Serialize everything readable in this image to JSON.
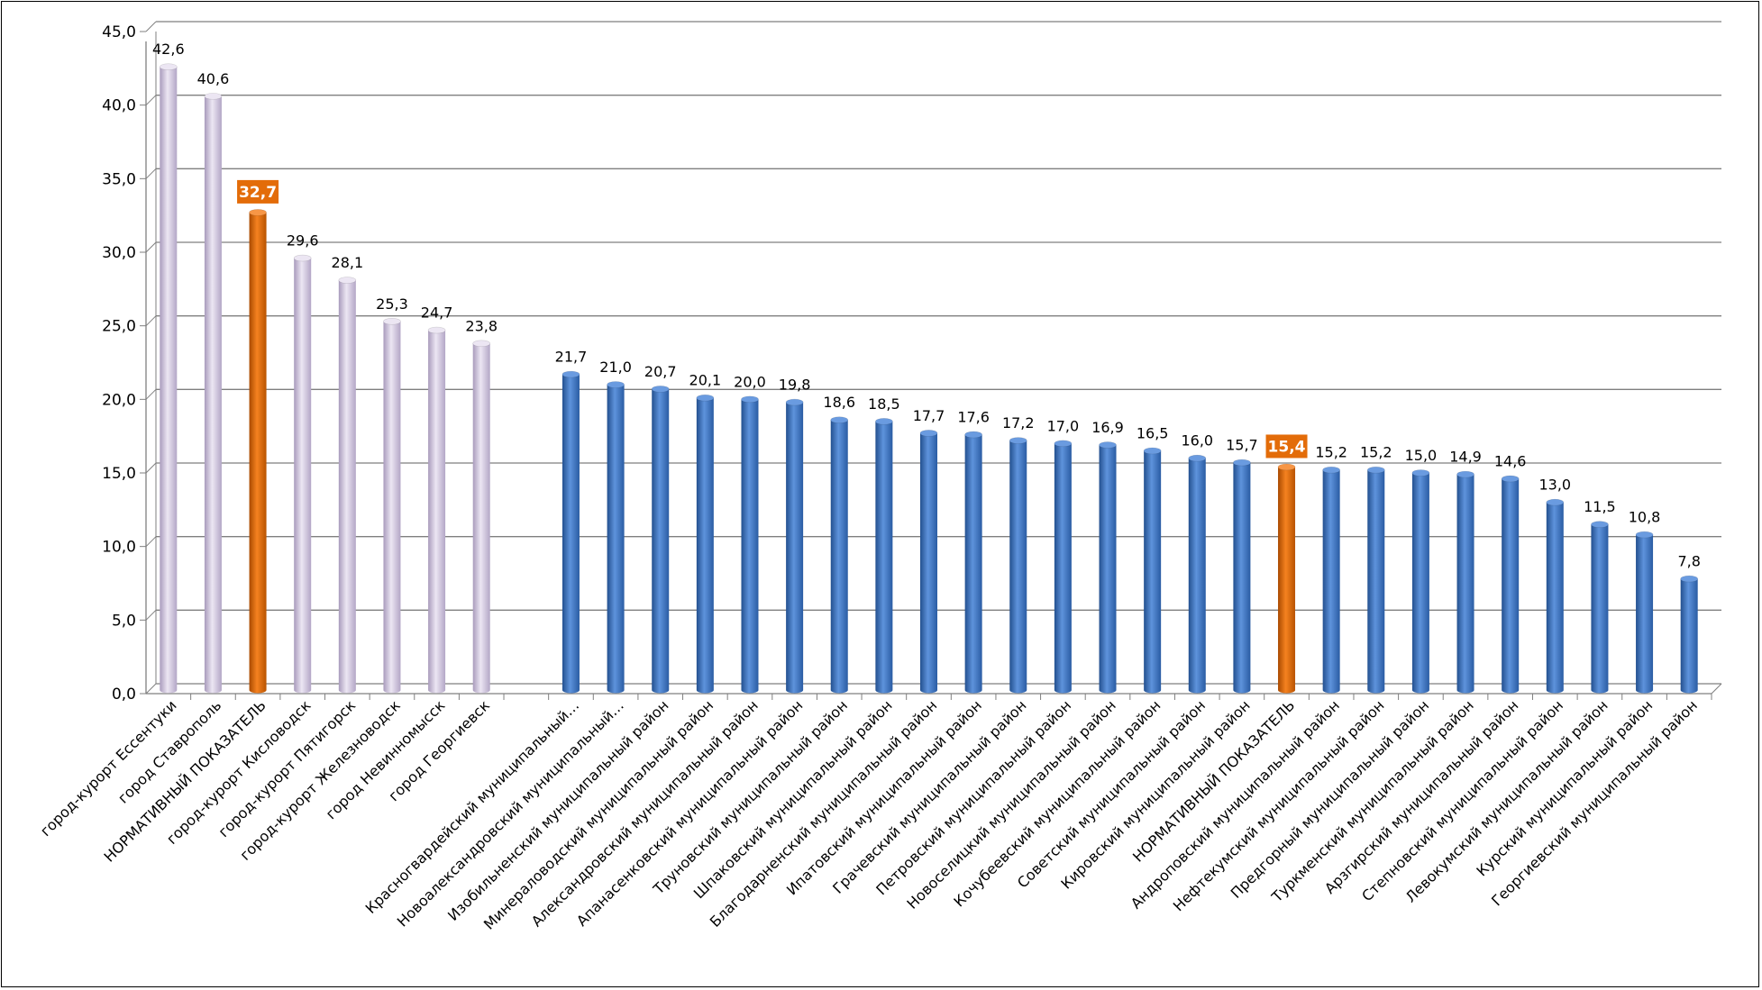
{
  "chart_data": {
    "type": "bar",
    "title": "",
    "xlabel": "",
    "ylabel": "",
    "ylim": [
      0,
      45
    ],
    "ytick_labels": [
      "0,0",
      "5,0",
      "10,0",
      "15,0",
      "20,0",
      "25,0",
      "30,0",
      "35,0",
      "40,0",
      "45,0"
    ],
    "grid": true,
    "legend": "none",
    "colors": {
      "city": "#d2c7df",
      "district": "#3f76c5",
      "norm": "#e36c09",
      "grid": "#7f7f7f"
    },
    "groups": [
      {
        "name": "",
        "bars": [
          {
            "label": "город-курорт  Ессентуки",
            "value": 42.6,
            "value_label": "42,6",
            "kind": "city"
          },
          {
            "label": "город Ставрополь",
            "value": 40.6,
            "value_label": "40,6",
            "kind": "city"
          },
          {
            "label": "НОРМАТИВНЫЙ ПОКАЗАТЕЛЬ",
            "value": 32.7,
            "value_label": "32,7",
            "kind": "norm"
          },
          {
            "label": "город-курорт Кисловодск",
            "value": 29.6,
            "value_label": "29,6",
            "kind": "city"
          },
          {
            "label": "город-курорт Пятигорск",
            "value": 28.1,
            "value_label": "28,1",
            "kind": "city"
          },
          {
            "label": "город-курорт Железноводск",
            "value": 25.3,
            "value_label": "25,3",
            "kind": "city"
          },
          {
            "label": "город Невинномысск",
            "value": 24.7,
            "value_label": "24,7",
            "kind": "city"
          },
          {
            "label": "город Георгиевск",
            "value": 23.8,
            "value_label": "23,8",
            "kind": "city"
          }
        ]
      },
      {
        "name": "",
        "bars": [
          {
            "label": "Красногвардейский муниципальный…",
            "value": 21.7,
            "value_label": "21,7",
            "kind": "district"
          },
          {
            "label": "Новоалександровский муниципальный…",
            "value": 21.0,
            "value_label": "21,0",
            "kind": "district"
          },
          {
            "label": "Изобильненский муниципальный район",
            "value": 20.7,
            "value_label": "20,7",
            "kind": "district"
          },
          {
            "label": "Минераловодский муниципальный район",
            "value": 20.1,
            "value_label": "20,1",
            "kind": "district"
          },
          {
            "label": "Александровский муниципальный район",
            "value": 20.0,
            "value_label": "20,0",
            "kind": "district"
          },
          {
            "label": "Апанасенковский муниципальный район",
            "value": 19.8,
            "value_label": "19,8",
            "kind": "district"
          },
          {
            "label": "Труновский муниципальный район",
            "value": 18.6,
            "value_label": "18,6",
            "kind": "district"
          },
          {
            "label": "Шпаковский муниципальный район",
            "value": 18.5,
            "value_label": "18,5",
            "kind": "district"
          },
          {
            "label": "Благодарненский муниципальный район",
            "value": 17.7,
            "value_label": "17,7",
            "kind": "district"
          },
          {
            "label": "Ипатовский муниципальный район",
            "value": 17.6,
            "value_label": "17,6",
            "kind": "district"
          },
          {
            "label": "Грачевский муниципальный район",
            "value": 17.2,
            "value_label": "17,2",
            "kind": "district"
          },
          {
            "label": "Петровский муниципальный район",
            "value": 17.0,
            "value_label": "17,0",
            "kind": "district"
          },
          {
            "label": "Новоселицкий муниципальный район",
            "value": 16.9,
            "value_label": "16,9",
            "kind": "district"
          },
          {
            "label": "Кочубеевский муниципальный район",
            "value": 16.5,
            "value_label": "16,5",
            "kind": "district"
          },
          {
            "label": "Советский муниципальный район",
            "value": 16.0,
            "value_label": "16,0",
            "kind": "district"
          },
          {
            "label": "Кировский муниципальный район",
            "value": 15.7,
            "value_label": "15,7",
            "kind": "district"
          },
          {
            "label": "НОРМАТИВНЫЙ ПОКАЗАТЕЛЬ",
            "value": 15.4,
            "value_label": "15,4",
            "kind": "norm"
          },
          {
            "label": "Андроповский муниципальный район",
            "value": 15.2,
            "value_label": "15,2",
            "kind": "district"
          },
          {
            "label": "Нефтекумский муниципальный район",
            "value": 15.2,
            "value_label": "15,2",
            "kind": "district"
          },
          {
            "label": "Предгорный муниципальный район",
            "value": 15.0,
            "value_label": "15,0",
            "kind": "district"
          },
          {
            "label": "Туркменский муниципальный район",
            "value": 14.9,
            "value_label": "14,9",
            "kind": "district"
          },
          {
            "label": "Арзгирский муниципальный район",
            "value": 14.6,
            "value_label": "14,6",
            "kind": "district"
          },
          {
            "label": "Степновский муниципальный район",
            "value": 13.0,
            "value_label": "13,0",
            "kind": "district"
          },
          {
            "label": "Левокумский муниципальный район",
            "value": 11.5,
            "value_label": "11,5",
            "kind": "district"
          },
          {
            "label": "Курский муниципальный район",
            "value": 10.8,
            "value_label": "10,8",
            "kind": "district"
          },
          {
            "label": "Георгиевский муниципальный район",
            "value": 7.8,
            "value_label": "7,8",
            "kind": "district"
          }
        ]
      }
    ]
  }
}
